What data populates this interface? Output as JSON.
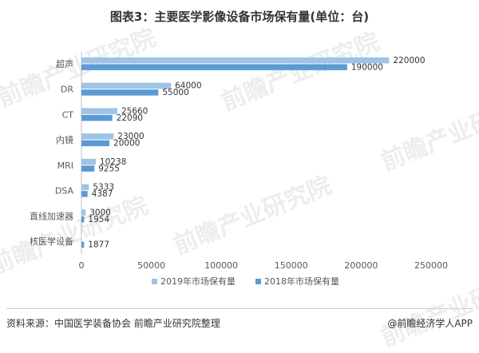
{
  "title": "图表3：主要医学影像设备市场保有量(单位：台)",
  "source": "资料来源：中国医学装备协会 前瞻产业研究院整理",
  "brand": "@前瞻经济学人APP",
  "watermark": "前瞻产业研究院",
  "colors": {
    "series_2019": "#9dc3e6",
    "series_2018": "#5b9bd5",
    "axis": "#bfbfbf",
    "text": "#595959"
  },
  "chart_data": {
    "type": "bar",
    "orientation": "horizontal",
    "categories": [
      "超声",
      "DR",
      "CT",
      "内镜",
      "MRI",
      "DSA",
      "直线加速器",
      "核医学设备"
    ],
    "series": [
      {
        "name": "2019年市场保有量",
        "values": [
          220000,
          64000,
          25660,
          23000,
          10238,
          5333,
          3000,
          null
        ]
      },
      {
        "name": "2018年市场保有量",
        "values": [
          190000,
          55000,
          22090,
          20000,
          9255,
          4387,
          1954,
          1877
        ]
      }
    ],
    "xlim": [
      0,
      250000
    ],
    "xticks": [
      0,
      50000,
      100000,
      150000,
      200000,
      250000
    ],
    "legend_position": "bottom",
    "grid": false
  }
}
